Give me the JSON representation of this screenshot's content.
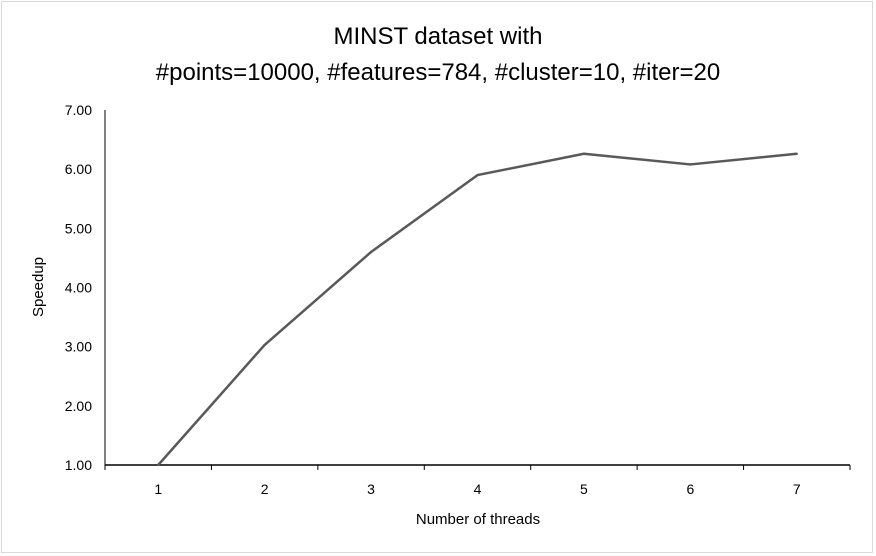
{
  "chart_data": {
    "type": "line",
    "title": [
      "MINST dataset with",
      "#points=10000, #features=784, #cluster=10, #iter=20"
    ],
    "xlabel": "Number of threads",
    "ylabel": "Speedup",
    "categories": [
      "1",
      "2",
      "3",
      "4",
      "5",
      "6",
      "7"
    ],
    "series": [
      {
        "values": [
          1.0,
          3.03,
          4.6,
          5.9,
          6.26,
          6.08,
          6.26
        ],
        "color": "#595959"
      }
    ],
    "ylim": [
      1.0,
      7.0
    ],
    "yticks": [
      "1.00",
      "2.00",
      "3.00",
      "4.00",
      "5.00",
      "6.00",
      "7.00"
    ],
    "grid": false,
    "legend": "none"
  }
}
